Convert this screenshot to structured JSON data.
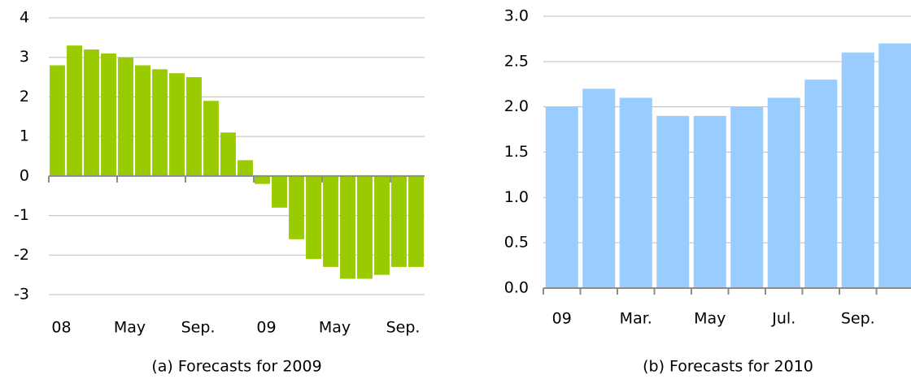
{
  "chart_data": [
    {
      "type": "bar",
      "title": "(a) Forecasts for 2009",
      "categories": [
        "08",
        null,
        null,
        null,
        "May",
        null,
        null,
        null,
        "Sep.",
        null,
        null,
        null,
        "09",
        null,
        null,
        null,
        "May",
        null,
        null,
        null,
        "Sep.",
        null
      ],
      "values": [
        2.8,
        3.3,
        3.2,
        3.1,
        3.0,
        2.8,
        2.7,
        2.6,
        2.5,
        1.9,
        1.1,
        0.4,
        -0.2,
        -0.8,
        -1.6,
        -2.1,
        -2.3,
        -2.6,
        -2.6,
        -2.5,
        -2.3,
        -2.3
      ],
      "color": "#99cc00",
      "ylim": [
        -3,
        4
      ],
      "yticks": [
        -3,
        -2,
        -1,
        0,
        1,
        2,
        3,
        4
      ],
      "grid": true
    },
    {
      "type": "bar",
      "title": "(b) Forecasts for 2010",
      "categories": [
        "09",
        null,
        "Mar.",
        null,
        "May",
        null,
        "Jul.",
        null,
        "Sep.",
        null
      ],
      "values": [
        2.0,
        2.2,
        2.1,
        1.9,
        1.9,
        2.0,
        2.1,
        2.3,
        2.6,
        2.7
      ],
      "color": "#99ccff",
      "ylim": [
        0,
        3
      ],
      "yticks": [
        {
          "value": 0,
          "label": "0.0"
        },
        0.5,
        {
          "value": 1,
          "label": "1.0"
        },
        1.5,
        {
          "value": 2,
          "label": "2.0"
        },
        2.5,
        {
          "value": 3,
          "label": "3.0"
        }
      ],
      "grid": true
    }
  ]
}
